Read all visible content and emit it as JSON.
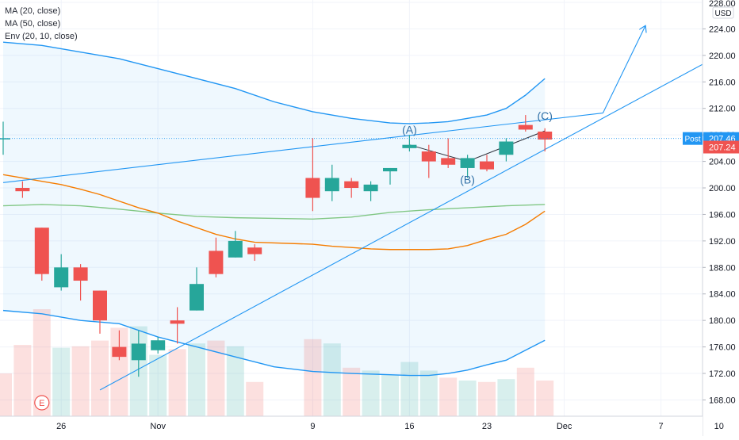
{
  "legend": [
    "MA (20, close)",
    "MA (50, close)",
    "Env (20, 10, close)"
  ],
  "currency": "USD",
  "price_labels": {
    "post_label": "Post",
    "post_value": "207.46",
    "last_value": "207.24"
  },
  "wave_labels": {
    "a": "(A)",
    "b": "(B)",
    "c": "(C)"
  },
  "earnings_marker": "E",
  "colors": {
    "up": "#26a69a",
    "down": "#ef5350",
    "ma20": "#f57c00",
    "ma50": "#81c784",
    "envelope": "#2196f3",
    "post": "#2196f3"
  },
  "chart_data": {
    "type": "candlestick",
    "y_axis": {
      "ticks": [
        "168.00",
        "172.00",
        "176.00",
        "180.00",
        "184.00",
        "188.00",
        "192.00",
        "196.00",
        "200.00",
        "204.00",
        "208.00",
        "212.00",
        "216.00",
        "220.00",
        "224.00",
        "228.00"
      ],
      "range": [
        166.5,
        228.0
      ]
    },
    "x_axis": {
      "ticks": [
        "26",
        "Nov",
        "9",
        "16",
        "Dec",
        "7",
        "10"
      ],
      "tick_days": [
        3,
        8,
        16,
        21,
        29,
        34,
        37
      ],
      "extra_label": "23"
    },
    "candles": [
      {
        "day": 0,
        "o": 207.5,
        "h": 210.0,
        "l": 205.0,
        "c": 207.5
      },
      {
        "day": 1,
        "o": 200.0,
        "h": 201.0,
        "l": 198.5,
        "c": 199.5
      },
      {
        "day": 2,
        "o": 194.0,
        "h": 194.0,
        "l": 186.0,
        "c": 187.0
      },
      {
        "day": 3,
        "o": 185.0,
        "h": 190.0,
        "l": 184.5,
        "c": 188.0
      },
      {
        "day": 4,
        "o": 188.0,
        "h": 188.5,
        "l": 183.0,
        "c": 186.0
      },
      {
        "day": 5,
        "o": 184.5,
        "h": 184.5,
        "l": 178.0,
        "c": 180.0
      },
      {
        "day": 6,
        "o": 176.0,
        "h": 178.5,
        "l": 174.0,
        "c": 174.5
      },
      {
        "day": 7,
        "o": 174.0,
        "h": 178.5,
        "l": 171.5,
        "c": 176.5
      },
      {
        "day": 8,
        "o": 175.5,
        "h": 177.5,
        "l": 175.0,
        "c": 177.0
      },
      {
        "day": 9,
        "o": 180.0,
        "h": 182.0,
        "l": 176.5,
        "c": 179.5
      },
      {
        "day": 10,
        "o": 181.5,
        "h": 188.0,
        "l": 181.5,
        "c": 185.5
      },
      {
        "day": 11,
        "o": 190.5,
        "h": 192.5,
        "l": 186.5,
        "c": 187.0
      },
      {
        "day": 12,
        "o": 189.5,
        "h": 193.5,
        "l": 189.5,
        "c": 192.0
      },
      {
        "day": 13,
        "o": 191.0,
        "h": 191.5,
        "l": 189.0,
        "c": 190.0
      },
      {
        "day": 16,
        "o": 201.5,
        "h": 207.5,
        "l": 196.5,
        "c": 198.5
      },
      {
        "day": 17,
        "o": 199.5,
        "h": 203.5,
        "l": 198.0,
        "c": 201.5
      },
      {
        "day": 18,
        "o": 201.0,
        "h": 201.5,
        "l": 198.5,
        "c": 200.0
      },
      {
        "day": 19,
        "o": 199.5,
        "h": 201.0,
        "l": 198.0,
        "c": 200.5
      },
      {
        "day": 20,
        "o": 202.5,
        "h": 203.0,
        "l": 200.5,
        "c": 203.0
      },
      {
        "day": 21,
        "o": 206.0,
        "h": 208.0,
        "l": 205.5,
        "c": 206.5
      },
      {
        "day": 22,
        "o": 205.5,
        "h": 206.5,
        "l": 201.5,
        "c": 204.0
      },
      {
        "day": 23,
        "o": 204.5,
        "h": 207.5,
        "l": 203.0,
        "c": 203.5
      },
      {
        "day": 24,
        "o": 203.0,
        "h": 205.0,
        "l": 201.5,
        "c": 204.5
      },
      {
        "day": 25,
        "o": 204.0,
        "h": 205.0,
        "l": 202.5,
        "c": 202.8
      },
      {
        "day": 26,
        "o": 205.0,
        "h": 207.5,
        "l": 204.0,
        "c": 207.0
      },
      {
        "day": 27,
        "o": 209.5,
        "h": 211.0,
        "l": 208.5,
        "c": 208.8
      },
      {
        "day": 28,
        "o": 208.5,
        "h": 209.0,
        "l": 205.5,
        "c": 207.3
      }
    ],
    "volume": [
      {
        "day": 0,
        "v": 0.3,
        "dir": "down"
      },
      {
        "day": 1,
        "v": 0.5,
        "dir": "down"
      },
      {
        "day": 2,
        "v": 0.75,
        "dir": "down"
      },
      {
        "day": 3,
        "v": 0.48,
        "dir": "up"
      },
      {
        "day": 4,
        "v": 0.49,
        "dir": "down"
      },
      {
        "day": 5,
        "v": 0.53,
        "dir": "down"
      },
      {
        "day": 6,
        "v": 0.62,
        "dir": "down"
      },
      {
        "day": 7,
        "v": 0.63,
        "dir": "up"
      },
      {
        "day": 8,
        "v": 0.43,
        "dir": "up"
      },
      {
        "day": 9,
        "v": 0.47,
        "dir": "down"
      },
      {
        "day": 10,
        "v": 0.51,
        "dir": "up"
      },
      {
        "day": 11,
        "v": 0.53,
        "dir": "down"
      },
      {
        "day": 12,
        "v": 0.49,
        "dir": "up"
      },
      {
        "day": 13,
        "v": 0.24,
        "dir": "down"
      },
      {
        "day": 16,
        "v": 0.54,
        "dir": "down"
      },
      {
        "day": 17,
        "v": 0.51,
        "dir": "up"
      },
      {
        "day": 18,
        "v": 0.34,
        "dir": "down"
      },
      {
        "day": 19,
        "v": 0.32,
        "dir": "up"
      },
      {
        "day": 20,
        "v": 0.29,
        "dir": "up"
      },
      {
        "day": 21,
        "v": 0.38,
        "dir": "up"
      },
      {
        "day": 22,
        "v": 0.32,
        "dir": "up"
      },
      {
        "day": 23,
        "v": 0.27,
        "dir": "down"
      },
      {
        "day": 24,
        "v": 0.25,
        "dir": "up"
      },
      {
        "day": 25,
        "v": 0.24,
        "dir": "down"
      },
      {
        "day": 26,
        "v": 0.26,
        "dir": "up"
      },
      {
        "day": 27,
        "v": 0.34,
        "dir": "down"
      },
      {
        "day": 28,
        "v": 0.25,
        "dir": "down"
      }
    ],
    "ma20": [
      [
        0,
        202.0
      ],
      [
        1,
        201.5
      ],
      [
        2,
        201.0
      ],
      [
        3,
        200.5
      ],
      [
        4,
        199.8
      ],
      [
        5,
        199.0
      ],
      [
        6,
        198.0
      ],
      [
        7,
        197.0
      ],
      [
        8,
        196.2
      ],
      [
        9,
        195.0
      ],
      [
        10,
        194.0
      ],
      [
        11,
        193.0
      ],
      [
        12,
        192.3
      ],
      [
        13,
        191.8
      ],
      [
        16,
        191.5
      ],
      [
        17,
        191.2
      ],
      [
        18,
        191.0
      ],
      [
        19,
        190.8
      ],
      [
        20,
        190.7
      ],
      [
        21,
        190.7
      ],
      [
        22,
        190.7
      ],
      [
        23,
        190.8
      ],
      [
        24,
        191.3
      ],
      [
        25,
        192.2
      ],
      [
        26,
        193.0
      ],
      [
        27,
        194.5
      ],
      [
        28,
        196.5
      ]
    ],
    "ma50": [
      [
        0,
        197.3
      ],
      [
        2,
        197.5
      ],
      [
        4,
        197.3
      ],
      [
        6,
        196.8
      ],
      [
        8,
        196.2
      ],
      [
        10,
        195.7
      ],
      [
        12,
        195.5
      ],
      [
        14,
        195.4
      ],
      [
        16,
        195.3
      ],
      [
        18,
        195.6
      ],
      [
        20,
        196.3
      ],
      [
        22,
        196.7
      ],
      [
        24,
        197.0
      ],
      [
        26,
        197.3
      ],
      [
        28,
        197.5
      ]
    ],
    "env_upper": [
      [
        0,
        222.0
      ],
      [
        2,
        221.5
      ],
      [
        4,
        220.5
      ],
      [
        6,
        219.5
      ],
      [
        8,
        218.0
      ],
      [
        10,
        216.5
      ],
      [
        12,
        215.0
      ],
      [
        14,
        213.0
      ],
      [
        16,
        211.5
      ],
      [
        18,
        210.5
      ],
      [
        20,
        209.8
      ],
      [
        21,
        209.7
      ],
      [
        22,
        209.8
      ],
      [
        23,
        210.0
      ],
      [
        24,
        210.5
      ],
      [
        25,
        211.0
      ],
      [
        26,
        212.0
      ],
      [
        27,
        214.0
      ],
      [
        28,
        216.5
      ]
    ],
    "env_lower": [
      [
        0,
        181.5
      ],
      [
        2,
        181.0
      ],
      [
        4,
        180.0
      ],
      [
        6,
        179.5
      ],
      [
        8,
        177.5
      ],
      [
        10,
        176.0
      ],
      [
        12,
        174.5
      ],
      [
        14,
        173.0
      ],
      [
        16,
        172.3
      ],
      [
        18,
        172.0
      ],
      [
        20,
        171.8
      ],
      [
        21,
        171.7
      ],
      [
        22,
        171.7
      ],
      [
        23,
        172.0
      ],
      [
        24,
        172.5
      ],
      [
        25,
        173.3
      ],
      [
        26,
        174.0
      ],
      [
        27,
        175.5
      ],
      [
        28,
        177.0
      ]
    ],
    "trendlines": [
      {
        "from": [
          0,
          200.8
        ],
        "to": [
          31,
          211.3
        ]
      },
      {
        "from": [
          5,
          169.5
        ],
        "to": [
          37,
          220.0
        ]
      },
      {
        "from": [
          31,
          211.3
        ],
        "to": [
          33.2,
          224.5
        ],
        "arrow": true
      }
    ],
    "waves": [
      [
        21,
        206.5
      ],
      [
        24,
        204.0
      ],
      [
        28,
        208.6
      ]
    ],
    "current_price": 207.46
  }
}
